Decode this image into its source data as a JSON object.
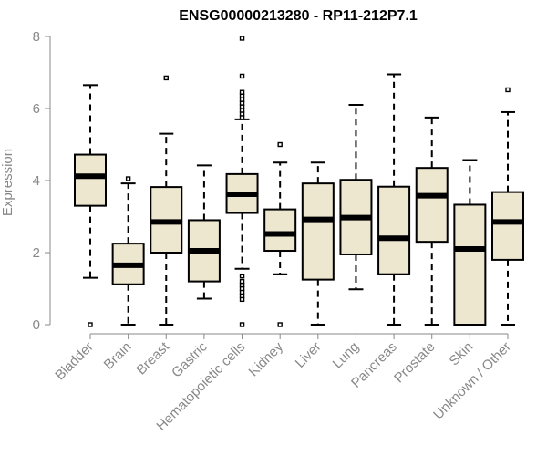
{
  "chart_data": {
    "type": "boxplot",
    "title": "ENSG00000213280 - RP11-212P7.1",
    "xlabel": "",
    "ylabel": "Expression",
    "ylim": [
      0,
      8
    ],
    "yticks": [
      0,
      2,
      4,
      6,
      8
    ],
    "categories": [
      "Bladder",
      "Brain",
      "Breast",
      "Gastric",
      "Hematopoietic cells",
      "Kidney",
      "Liver",
      "Lung",
      "Pancreas",
      "Prostate",
      "Skin",
      "Unknown / Other"
    ],
    "boxes": [
      {
        "category": "Bladder",
        "whisker_low": 1.3,
        "q1": 3.3,
        "median": 4.12,
        "q3": 4.72,
        "whisker_high": 6.65,
        "outliers": [
          0.0
        ]
      },
      {
        "category": "Brain",
        "whisker_low": 0.0,
        "q1": 1.12,
        "median": 1.65,
        "q3": 2.25,
        "whisker_high": 3.92,
        "outliers": [
          4.05
        ]
      },
      {
        "category": "Breast",
        "whisker_low": 0.0,
        "q1": 2.0,
        "median": 2.85,
        "q3": 3.82,
        "whisker_high": 5.3,
        "outliers": [
          6.85
        ]
      },
      {
        "category": "Gastric",
        "whisker_low": 0.72,
        "q1": 1.2,
        "median": 2.05,
        "q3": 2.9,
        "whisker_high": 4.42,
        "outliers": []
      },
      {
        "category": "Hematopoietic cells",
        "whisker_low": 1.55,
        "q1": 3.1,
        "median": 3.62,
        "q3": 4.18,
        "whisker_high": 5.7,
        "outliers": [
          0.0,
          0.7,
          0.8,
          0.9,
          1.0,
          1.1,
          1.2,
          1.35,
          5.75,
          5.85,
          5.95,
          6.05,
          6.15,
          6.25,
          6.35,
          6.45,
          6.9,
          7.95
        ]
      },
      {
        "category": "Kidney",
        "whisker_low": 1.4,
        "q1": 2.05,
        "median": 2.52,
        "q3": 3.2,
        "whisker_high": 4.5,
        "outliers": [
          0.0,
          5.0
        ]
      },
      {
        "category": "Liver",
        "whisker_low": 0.0,
        "q1": 1.25,
        "median": 2.92,
        "q3": 3.92,
        "whisker_high": 4.5,
        "outliers": []
      },
      {
        "category": "Lung",
        "whisker_low": 0.98,
        "q1": 1.95,
        "median": 2.97,
        "q3": 4.02,
        "whisker_high": 6.1,
        "outliers": []
      },
      {
        "category": "Pancreas",
        "whisker_low": 0.0,
        "q1": 1.4,
        "median": 2.4,
        "q3": 3.83,
        "whisker_high": 6.95,
        "outliers": []
      },
      {
        "category": "Prostate",
        "whisker_low": 0.0,
        "q1": 2.3,
        "median": 3.58,
        "q3": 4.35,
        "whisker_high": 5.75,
        "outliers": []
      },
      {
        "category": "Skin",
        "whisker_low": 0.0,
        "q1": 0.0,
        "median": 2.1,
        "q3": 3.33,
        "whisker_high": 4.57,
        "outliers": []
      },
      {
        "category": "Unknown / Other",
        "whisker_low": 0.0,
        "q1": 1.8,
        "median": 2.85,
        "q3": 3.68,
        "whisker_high": 5.9,
        "outliers": [
          6.52
        ]
      }
    ],
    "box_fill": "#EDE7CF",
    "box_stroke": "#000000",
    "axis_color": "#888888",
    "grid": false,
    "legend": "none"
  }
}
